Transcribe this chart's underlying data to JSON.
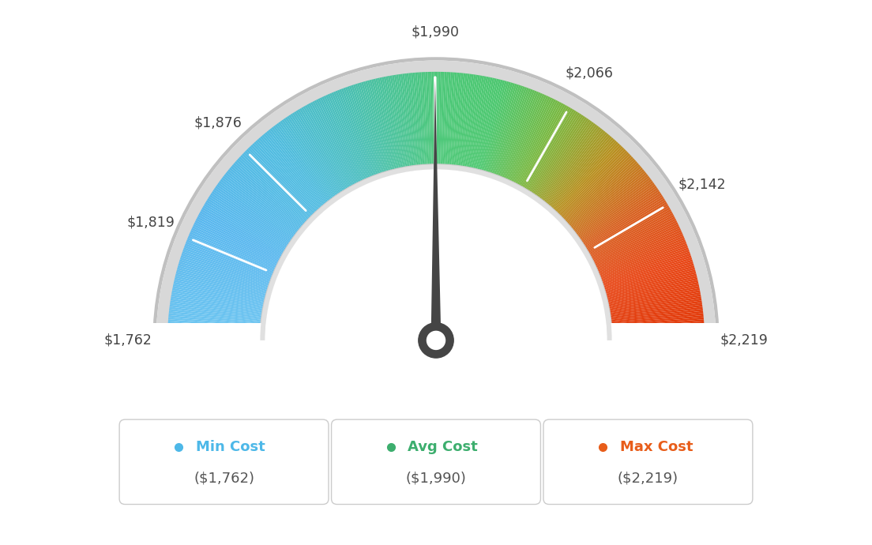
{
  "min_val": 1762,
  "avg_val": 1990,
  "max_val": 2219,
  "tick_labels": [
    "$1,762",
    "$1,819",
    "$1,876",
    "$1,990",
    "$2,066",
    "$2,142",
    "$2,219"
  ],
  "tick_values": [
    1762,
    1819,
    1876,
    1990,
    2066,
    2142,
    2219
  ],
  "legend": [
    {
      "label": "Min Cost",
      "value": "($1,762)",
      "color": "#4db8e8"
    },
    {
      "label": "Avg Cost",
      "value": "($1,990)",
      "color": "#3dae6e"
    },
    {
      "label": "Max Cost",
      "value": "($2,219)",
      "color": "#e85d1a"
    }
  ],
  "needle_value": 1990,
  "bg_color": "#ffffff",
  "color_stops": [
    [
      0.0,
      "#6ec6f0"
    ],
    [
      0.15,
      "#5ab8ef"
    ],
    [
      0.28,
      "#50bce0"
    ],
    [
      0.38,
      "#4abfb8"
    ],
    [
      0.5,
      "#4dc87a"
    ],
    [
      0.58,
      "#4dc870"
    ],
    [
      0.66,
      "#7ab840"
    ],
    [
      0.74,
      "#b89020"
    ],
    [
      0.82,
      "#d86020"
    ],
    [
      0.9,
      "#e84818"
    ],
    [
      1.0,
      "#e03808"
    ]
  ]
}
